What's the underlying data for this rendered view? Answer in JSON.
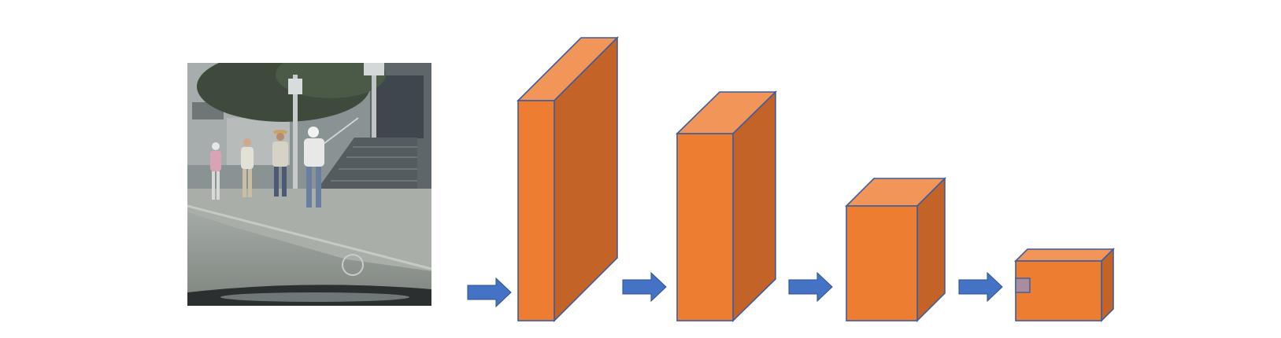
{
  "colors": {
    "background": "#ffffff",
    "block_front": "#ED7D31",
    "block_top": "#F19658",
    "block_side": "#C46327",
    "block_outline": "#3F5C9E",
    "arrow_fill": "#4472C4",
    "arrow_outline": "#2F528F",
    "patch_fill": "#A98D9E",
    "sky": "#5b6670",
    "building": "#9aa0a2",
    "tree": "#3e4a3c",
    "sidewalk": "#a9aea8",
    "road": "#8f958f",
    "car_hood": "#2c2f30"
  },
  "diagram": {
    "input": {
      "kind": "street-scene-photo"
    },
    "stages": [
      {
        "name": "feature-block-1"
      },
      {
        "name": "feature-block-2"
      },
      {
        "name": "feature-block-3"
      },
      {
        "name": "feature-block-4",
        "has_patch": true
      }
    ],
    "arrows": [
      {
        "name": "arrow-1"
      },
      {
        "name": "arrow-2"
      },
      {
        "name": "arrow-3"
      },
      {
        "name": "arrow-4"
      }
    ]
  }
}
